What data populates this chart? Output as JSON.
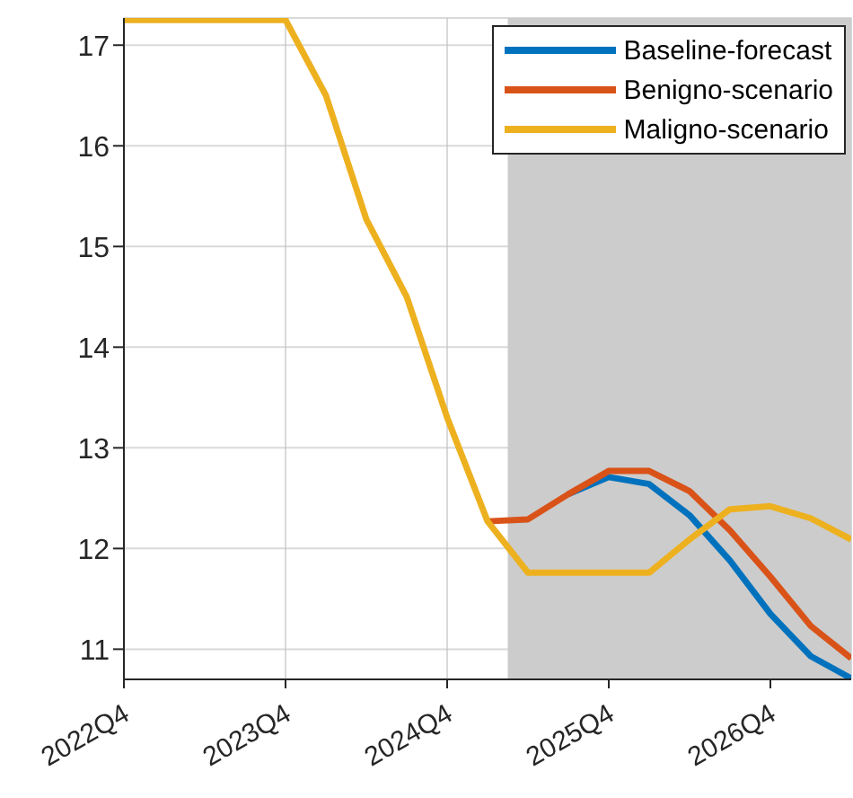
{
  "chart_data": {
    "type": "line",
    "categories": [
      "2022Q4",
      null,
      null,
      null,
      "2023Q4",
      null,
      null,
      null,
      "2024Q4",
      null,
      null,
      null,
      "2025Q4",
      null,
      null,
      null,
      "2026Q4",
      null,
      null
    ],
    "series": [
      {
        "name": "Baseline-forecast",
        "color": "#0072bd",
        "values": [
          null,
          null,
          null,
          null,
          null,
          null,
          null,
          null,
          null,
          null,
          null,
          12.54,
          12.71,
          12.64,
          12.33,
          11.88,
          11.35,
          10.93,
          10.71
        ]
      },
      {
        "name": "Benigno-scenario",
        "color": "#d95319",
        "values": [
          null,
          null,
          null,
          null,
          null,
          null,
          null,
          null,
          null,
          12.27,
          12.29,
          12.54,
          12.77,
          12.77,
          12.57,
          12.18,
          11.72,
          11.23,
          10.91
        ]
      },
      {
        "name": "Maligno-scenario",
        "color": "#edb120",
        "values": [
          17.25,
          17.25,
          17.25,
          17.25,
          17.25,
          16.5,
          15.27,
          14.5,
          13.3,
          12.27,
          11.76,
          11.76,
          11.76,
          11.76,
          12.09,
          12.39,
          12.42,
          12.3,
          12.09
        ]
      }
    ],
    "ylim": [
      10.7,
      17.27
    ],
    "yticks": [
      11,
      12,
      13,
      14,
      15,
      16,
      17
    ],
    "grid": true,
    "legend": "top right",
    "line_style": "solid",
    "marker": "none"
  }
}
